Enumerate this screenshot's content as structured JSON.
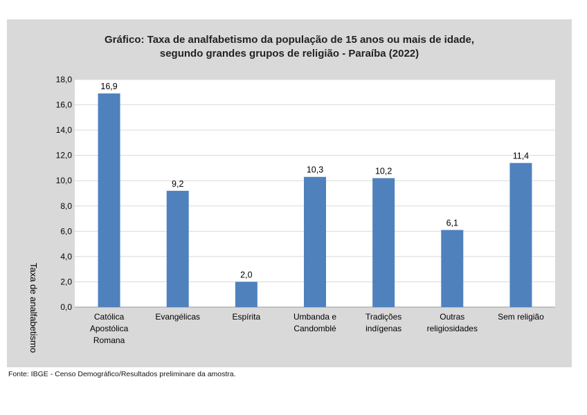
{
  "chart_data": {
    "type": "bar",
    "title_lines": [
      "Gráfico: Taxa de analfabetismo da população de 15 anos ou mais de idade,",
      "segundo grandes grupos de religião - Paraíba (2022)"
    ],
    "ylabel": "Taxa de analfabetismo",
    "xlabel": "",
    "ylim": [
      0,
      18
    ],
    "y_ticks": [
      "0,0",
      "2,0",
      "4,0",
      "6,0",
      "8,0",
      "10,0",
      "12,0",
      "14,0",
      "16,0",
      "18,0"
    ],
    "grid": true,
    "categories": [
      [
        "Católica",
        "Apostólica",
        "Romana"
      ],
      [
        "Evangélicas"
      ],
      [
        "Espírita"
      ],
      [
        "Umbanda e",
        "Candomblé"
      ],
      [
        "Tradições",
        "indígenas"
      ],
      [
        "Outras",
        "religiosidades"
      ],
      [
        "Sem religião"
      ]
    ],
    "values": [
      16.9,
      9.2,
      2.0,
      10.3,
      10.2,
      6.1,
      11.4
    ],
    "value_labels": [
      "16,9",
      "9,2",
      "2,0",
      "10,3",
      "10,2",
      "6,1",
      "11,4"
    ],
    "bar_color": "#4f81bd"
  },
  "source_note": "Fonte: IBGE - Censo Demográfico/Resultados preliminare da amostra."
}
